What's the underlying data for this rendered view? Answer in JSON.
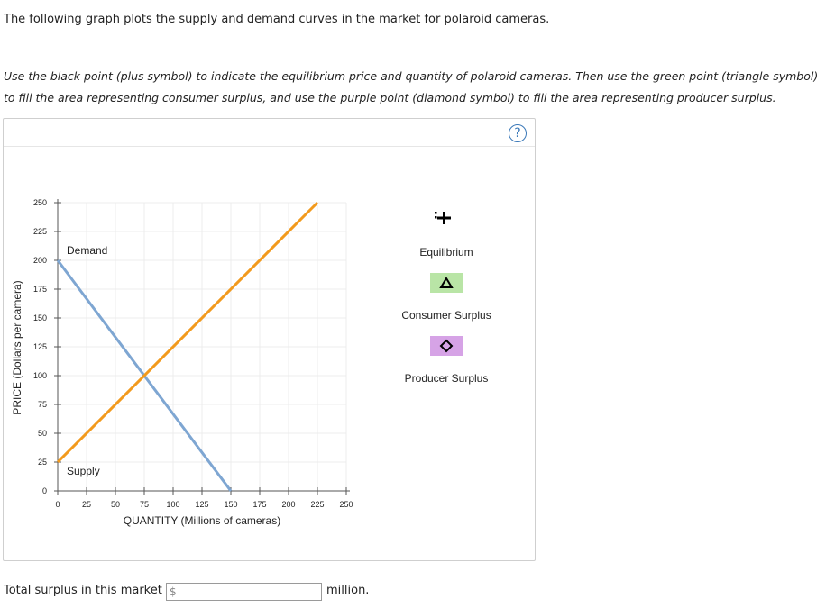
{
  "instructions": {
    "intro": "The following graph plots the supply and demand curves in the market for polaroid cameras.",
    "task": "Use the black point (plus symbol) to indicate the equilibrium price and quantity of polaroid cameras. Then use the green point (triangle symbol) to fill the area representing consumer surplus, and use the purple point (diamond symbol) to fill the area representing producer surplus."
  },
  "help_label": "?",
  "tools": {
    "equilibrium": {
      "label": "Equilibrium",
      "color": "#000000"
    },
    "consumer_surplus": {
      "label": "Consumer Surplus",
      "color": "#b9e5a6"
    },
    "producer_surplus": {
      "label": "Producer Surplus",
      "color": "#d6a3e6"
    }
  },
  "answer": {
    "prompt": "Total surplus in this market is",
    "prefix": "$",
    "value": "",
    "unit": "million."
  },
  "chart_data": {
    "type": "line",
    "xlabel": "QUANTITY (Millions of cameras)",
    "ylabel": "PRICE (Dollars per camera)",
    "xlim": [
      0,
      250
    ],
    "ylim": [
      0,
      250
    ],
    "xticks": [
      0,
      25,
      50,
      75,
      100,
      125,
      150,
      175,
      200,
      225,
      250
    ],
    "yticks": [
      0,
      25,
      50,
      75,
      100,
      125,
      150,
      175,
      200,
      225,
      250
    ],
    "grid": true,
    "series": [
      {
        "name": "Demand",
        "color": "#7ea6d2",
        "x": [
          0,
          150
        ],
        "y": [
          200,
          0
        ]
      },
      {
        "name": "Supply",
        "color": "#f29a1d",
        "x": [
          0,
          225
        ],
        "y": [
          25,
          250
        ]
      }
    ]
  }
}
